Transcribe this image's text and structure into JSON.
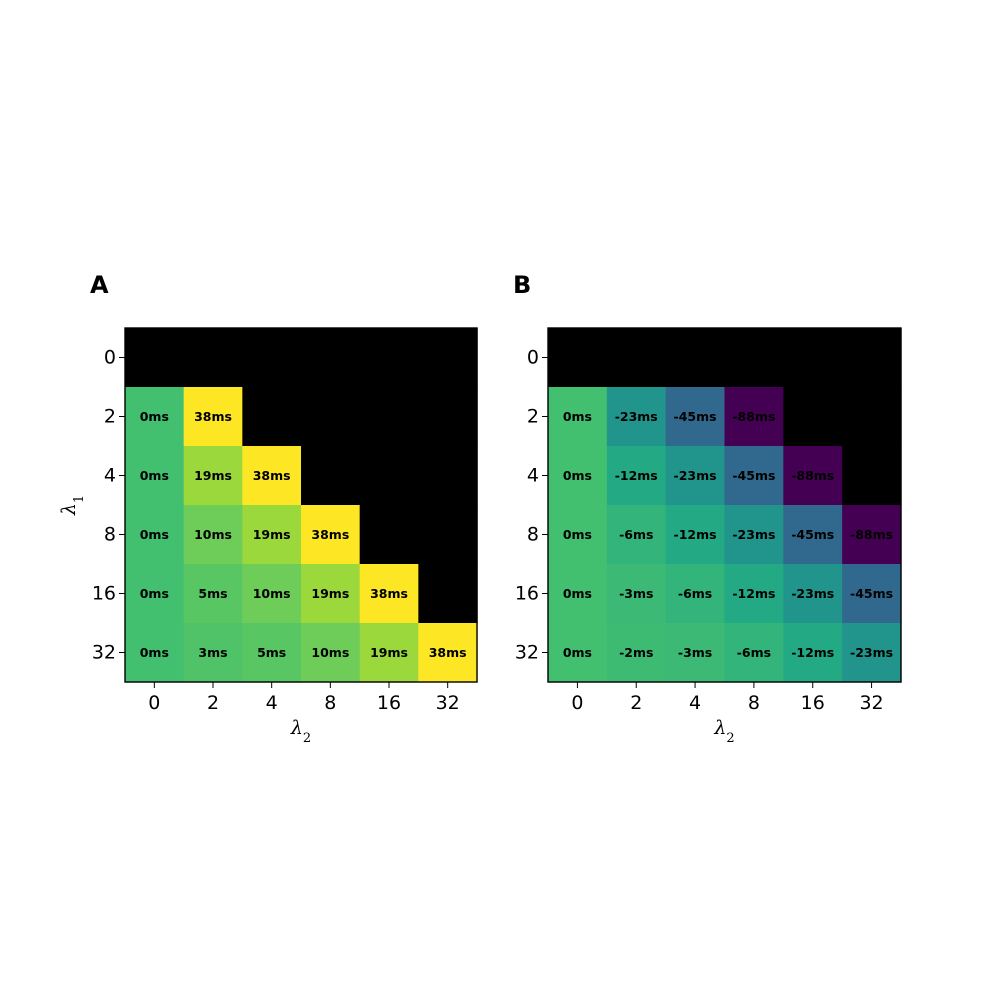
{
  "chart_data": [
    {
      "type": "heatmap",
      "panel_label": "A",
      "xlabel": "λ2",
      "ylabel": "λ1",
      "x_categories": [
        "0",
        "2",
        "4",
        "8",
        "16",
        "32"
      ],
      "y_categories": [
        "0",
        "2",
        "4",
        "8",
        "16",
        "32"
      ],
      "colormap": "viridis",
      "color_range": [
        -88,
        38
      ],
      "masked_color": "#000000",
      "values": [
        [
          null,
          null,
          null,
          null,
          null,
          null
        ],
        [
          0,
          38,
          null,
          null,
          null,
          null
        ],
        [
          0,
          19,
          38,
          null,
          null,
          null
        ],
        [
          0,
          10,
          19,
          38,
          null,
          null
        ],
        [
          0,
          5,
          10,
          19,
          38,
          null
        ],
        [
          0,
          3,
          5,
          10,
          19,
          38
        ]
      ],
      "labels": [
        [
          null,
          null,
          null,
          null,
          null,
          null
        ],
        [
          "0ms",
          "38ms",
          null,
          null,
          null,
          null
        ],
        [
          "0ms",
          "19ms",
          "38ms",
          null,
          null,
          null
        ],
        [
          "0ms",
          "10ms",
          "19ms",
          "38ms",
          null,
          null
        ],
        [
          "0ms",
          "5ms",
          "10ms",
          "19ms",
          "38ms",
          null
        ],
        [
          "0ms",
          "3ms",
          "5ms",
          "10ms",
          "19ms",
          "38ms"
        ]
      ]
    },
    {
      "type": "heatmap",
      "panel_label": "B",
      "xlabel": "λ2",
      "ylabel": "",
      "x_categories": [
        "0",
        "2",
        "4",
        "8",
        "16",
        "32"
      ],
      "y_categories": [
        "0",
        "2",
        "4",
        "8",
        "16",
        "32"
      ],
      "colormap": "viridis",
      "color_range": [
        -88,
        38
      ],
      "masked_color": "#000000",
      "values": [
        [
          null,
          null,
          null,
          null,
          null,
          null
        ],
        [
          0,
          -23,
          -45,
          -88,
          null,
          null
        ],
        [
          0,
          -12,
          -23,
          -45,
          -88,
          null
        ],
        [
          0,
          -6,
          -12,
          -23,
          -45,
          -88
        ],
        [
          0,
          -3,
          -6,
          -12,
          -23,
          -45
        ],
        [
          0,
          -2,
          -3,
          -6,
          -12,
          -23
        ]
      ],
      "labels": [
        [
          null,
          null,
          null,
          null,
          null,
          null
        ],
        [
          "0ms",
          "-23ms",
          "-45ms",
          "-88ms",
          null,
          null
        ],
        [
          "0ms",
          "-12ms",
          "-23ms",
          "-45ms",
          "-88ms",
          null
        ],
        [
          "0ms",
          "-6ms",
          "-12ms",
          "-23ms",
          "-45ms",
          "-88ms"
        ],
        [
          "0ms",
          "-3ms",
          "-6ms",
          "-12ms",
          "-23ms",
          "-45ms"
        ],
        [
          "0ms",
          "-2ms",
          "-3ms",
          "-6ms",
          "-12ms",
          "-23ms"
        ]
      ]
    }
  ]
}
